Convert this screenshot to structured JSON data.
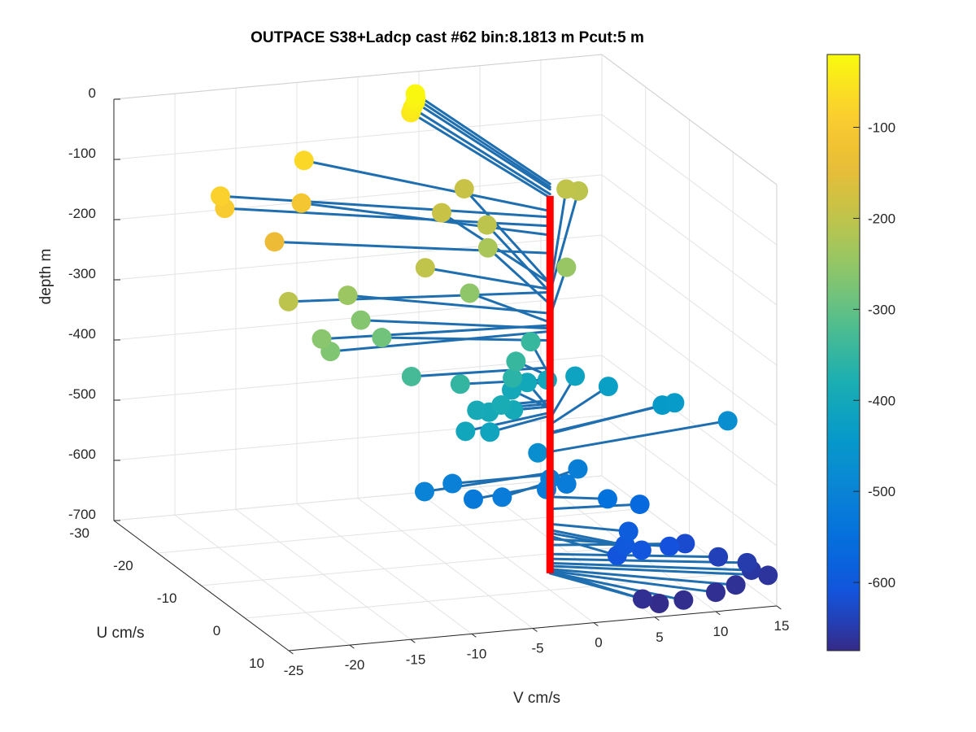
{
  "chart_data": {
    "type": "scatter",
    "title": "OUTPACE S38+Ladcp cast #62 bin:8.1813 m  Pcut:5 m",
    "xlabel": "V cm/s",
    "ylabel": "U cm/s",
    "zlabel": "depth m",
    "xlim": [
      -25,
      15
    ],
    "ylim": [
      -30,
      10
    ],
    "zlim": [
      -700,
      0
    ],
    "x_ticks": [
      "-25",
      "-20",
      "-15",
      "-10",
      "-5",
      "0",
      "5",
      "10",
      "15"
    ],
    "y_ticks": [
      "-30",
      "-20",
      "-10",
      "0",
      "10"
    ],
    "z_ticks": [
      "0",
      "-100",
      "-200",
      "-300",
      "-400",
      "-500",
      "-600",
      "-700"
    ],
    "grid": true,
    "colorbar": {
      "colormap": "parula",
      "limits": [
        -675,
        -20
      ],
      "ticks": [
        "-100",
        "-200",
        "-300",
        "-400",
        "-500",
        "-600"
      ]
    },
    "vertical_line_color": "#ff0000",
    "stick_color": "#1f6fb0",
    "series": [
      {
        "points": [
          {
            "v": -1.0,
            "u": -28.0,
            "depth": -25
          },
          {
            "v": -1.1,
            "u": -27.6,
            "depth": -30
          },
          {
            "v": -1.3,
            "u": -27.2,
            "depth": -34
          },
          {
            "v": -1.6,
            "u": -27.0,
            "depth": -42
          },
          {
            "v": -1.8,
            "u": -26.8,
            "depth": -48
          },
          {
            "v": -13.0,
            "u": -20.0,
            "depth": -70
          },
          {
            "v": -22.0,
            "u": -14.0,
            "depth": -80
          },
          {
            "v": -22.0,
            "u": -13.0,
            "depth": -95
          },
          {
            "v": -15.0,
            "u": -15.0,
            "depth": -110
          },
          {
            "v": -19.0,
            "u": -10.0,
            "depth": -140
          },
          {
            "v": -20.0,
            "u": -4.0,
            "depth": -205
          },
          {
            "v": -7.0,
            "u": -9.0,
            "depth": -200
          },
          {
            "v": -1.0,
            "u": -22.0,
            "depth": -190
          },
          {
            "v": 3.0,
            "u": -28.0,
            "depth": -190
          },
          {
            "v": 11.0,
            "u": -27.0,
            "depth": -200
          },
          {
            "v": 12.0,
            "u": -27.0,
            "depth": -205
          },
          {
            "v": 2.0,
            "u": -20.0,
            "depth": -205
          },
          {
            "v": 1.0,
            "u": -17.0,
            "depth": -225
          },
          {
            "v": 6.0,
            "u": -13.0,
            "depth": -245
          },
          {
            "v": -13.0,
            "u": -10.0,
            "depth": -240
          },
          {
            "v": -18.0,
            "u": -2.0,
            "depth": -260
          },
          {
            "v": -13.0,
            "u": -7.0,
            "depth": -265
          },
          {
            "v": -3.0,
            "u": -10.0,
            "depth": -255
          },
          {
            "v": -18.0,
            "u": 0.0,
            "depth": -270
          },
          {
            "v": -12.0,
            "u": -5.0,
            "depth": -285
          },
          {
            "v": -11.0,
            "u": -1.0,
            "depth": -330
          },
          {
            "v": -7.0,
            "u": -1.0,
            "depth": -350
          },
          {
            "v": -1.0,
            "u": -5.0,
            "depth": -345
          },
          {
            "v": 2.0,
            "u": -10.0,
            "depth": -345
          },
          {
            "v": -2.0,
            "u": -3.0,
            "depth": -360
          },
          {
            "v": -4.0,
            "u": 0.0,
            "depth": -385
          },
          {
            "v": -6.0,
            "u": 0.0,
            "depth": -390
          },
          {
            "v": -8.0,
            "u": 3.0,
            "depth": -405
          },
          {
            "v": -6.0,
            "u": 3.0,
            "depth": -410
          },
          {
            "v": -5.0,
            "u": 0.0,
            "depth": -395
          },
          {
            "v": -3.0,
            "u": 0.0,
            "depth": -395
          },
          {
            "v": -1.0,
            "u": -6.0,
            "depth": -398
          },
          {
            "v": 1.0,
            "u": -8.0,
            "depth": -400
          },
          {
            "v": 3.0,
            "u": -9.0,
            "depth": -405
          },
          {
            "v": 6.0,
            "u": -11.0,
            "depth": -415
          },
          {
            "v": 8.0,
            "u": -9.0,
            "depth": -425
          },
          {
            "v": 11.0,
            "u": -5.0,
            "depth": -440
          },
          {
            "v": 12.0,
            "u": -5.0,
            "depth": -438
          },
          {
            "v": 16.0,
            "u": -4.0,
            "depth": -470
          },
          {
            "v": -1.0,
            "u": 0.0,
            "depth": -470
          },
          {
            "v": -11.0,
            "u": 2.0,
            "depth": -505
          },
          {
            "v": -8.0,
            "u": 0.0,
            "depth": -508
          },
          {
            "v": -7.0,
            "u": 2.0,
            "depth": -525
          },
          {
            "v": -5.0,
            "u": 3.0,
            "depth": -520
          },
          {
            "v": -1.0,
            "u": 2.0,
            "depth": -520
          },
          {
            "v": 0.0,
            "u": 0.0,
            "depth": -515
          },
          {
            "v": 1.0,
            "u": 1.0,
            "depth": -520
          },
          {
            "v": 3.0,
            "u": -2.0,
            "depth": -515
          },
          {
            "v": 4.0,
            "u": 2.0,
            "depth": -545
          },
          {
            "v": 7.0,
            "u": 1.0,
            "depth": -565
          },
          {
            "v": 5.0,
            "u": 4.0,
            "depth": -590
          },
          {
            "v": 4.0,
            "u": 6.0,
            "depth": -600
          },
          {
            "v": 3.0,
            "u": 7.0,
            "depth": -610
          },
          {
            "v": 5.0,
            "u": 7.0,
            "depth": -605
          },
          {
            "v": 8.0,
            "u": 5.0,
            "depth": -615
          },
          {
            "v": 10.0,
            "u": 3.0,
            "depth": -625
          },
          {
            "v": 12.0,
            "u": 5.0,
            "depth": -640
          },
          {
            "v": 14.0,
            "u": 6.0,
            "depth": -648
          },
          {
            "v": 14.0,
            "u": 7.0,
            "depth": -655
          },
          {
            "v": 15.0,
            "u": 8.0,
            "depth": -660
          },
          {
            "v": 12.0,
            "u": 9.0,
            "depth": -665
          },
          {
            "v": 10.0,
            "u": 10.0,
            "depth": -668
          },
          {
            "v": 7.0,
            "u": 11.0,
            "depth": -670
          },
          {
            "v": 5.0,
            "u": 11.0,
            "depth": -672
          },
          {
            "v": 4.0,
            "u": 10.0,
            "depth": -668
          }
        ]
      }
    ]
  }
}
